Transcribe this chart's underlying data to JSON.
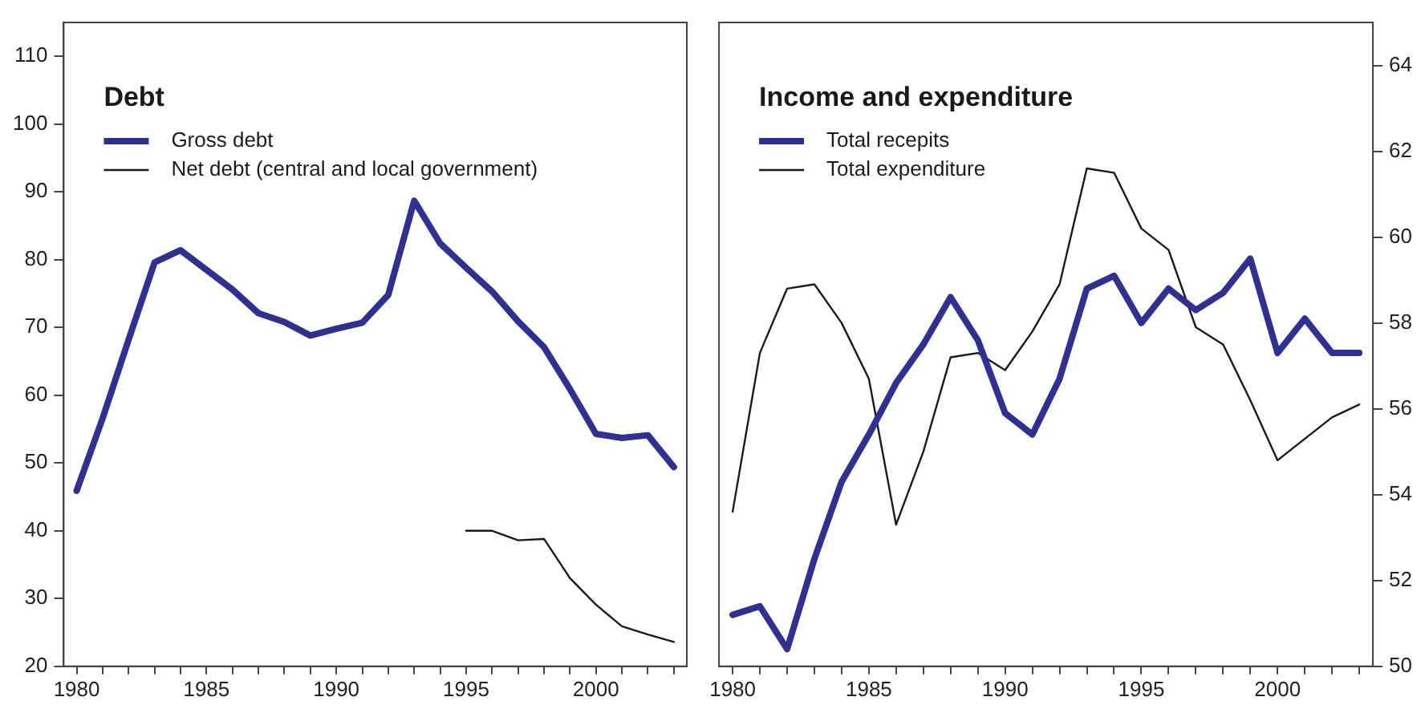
{
  "chart_data": [
    {
      "type": "line",
      "title": "Debt",
      "legend": "top left",
      "x": [
        1980,
        1981,
        1982,
        1983,
        1984,
        1985,
        1986,
        1987,
        1988,
        1989,
        1990,
        1991,
        1992,
        1993,
        1994,
        1995,
        1996,
        1997,
        1998,
        1999,
        2000,
        2001,
        2002,
        2003
      ],
      "xlim": [
        1979.5,
        2003.5
      ],
      "xticks": [
        1980,
        {
          "value": 1981,
          "label": null
        },
        {
          "value": 1982,
          "label": null
        },
        {
          "value": 1983,
          "label": null
        },
        {
          "value": 1984,
          "label": null
        },
        1985,
        {
          "value": 1986,
          "label": null
        },
        {
          "value": 1987,
          "label": null
        },
        {
          "value": 1988,
          "label": null
        },
        {
          "value": 1989,
          "label": null
        },
        1990,
        {
          "value": 1991,
          "label": null
        },
        {
          "value": 1992,
          "label": null
        },
        {
          "value": 1993,
          "label": null
        },
        {
          "value": 1994,
          "label": null
        },
        1995,
        {
          "value": 1996,
          "label": null
        },
        {
          "value": 1997,
          "label": null
        },
        {
          "value": 1998,
          "label": null
        },
        {
          "value": 1999,
          "label": null
        },
        2000,
        {
          "value": 2001,
          "label": null
        },
        {
          "value": 2002,
          "label": null
        },
        {
          "value": 2003,
          "label": null
        }
      ],
      "ylim": [
        20,
        115
      ],
      "yticks": [
        20,
        30,
        40,
        50,
        60,
        70,
        80,
        90,
        100,
        110
      ],
      "series": [
        {
          "name": "Gross debt",
          "color": "#2e3192",
          "values": [
            45.9,
            56.6,
            68.2,
            79.6,
            81.4,
            78.5,
            75.6,
            72.1,
            70.8,
            68.8,
            69.8,
            70.7,
            74.8,
            88.7,
            82.4,
            78.8,
            75.3,
            70.9,
            67.1,
            60.9,
            54.3,
            53.7,
            54.1,
            49.4
          ]
        },
        {
          "name": "Net debt (central and local government)",
          "color": "#1a1a1a",
          "values": [
            null,
            null,
            null,
            null,
            null,
            null,
            null,
            null,
            null,
            null,
            null,
            null,
            null,
            null,
            null,
            40.0,
            40.0,
            38.6,
            38.8,
            33.0,
            29.1,
            25.9,
            24.7,
            23.6
          ]
        }
      ]
    },
    {
      "type": "line",
      "title": "Income and expenditure",
      "legend": "top left",
      "x": [
        1980,
        1981,
        1982,
        1983,
        1984,
        1985,
        1986,
        1987,
        1988,
        1989,
        1990,
        1991,
        1992,
        1993,
        1994,
        1995,
        1996,
        1997,
        1998,
        1999,
        2000,
        2001,
        2002,
        2003
      ],
      "xlim": [
        1979.5,
        2003.5
      ],
      "xticks": [
        1980,
        {
          "value": 1981,
          "label": null
        },
        {
          "value": 1982,
          "label": null
        },
        {
          "value": 1983,
          "label": null
        },
        {
          "value": 1984,
          "label": null
        },
        1985,
        {
          "value": 1986,
          "label": null
        },
        {
          "value": 1987,
          "label": null
        },
        {
          "value": 1988,
          "label": null
        },
        {
          "value": 1989,
          "label": null
        },
        1990,
        {
          "value": 1991,
          "label": null
        },
        {
          "value": 1992,
          "label": null
        },
        {
          "value": 1993,
          "label": null
        },
        {
          "value": 1994,
          "label": null
        },
        1995,
        {
          "value": 1996,
          "label": null
        },
        {
          "value": 1997,
          "label": null
        },
        {
          "value": 1998,
          "label": null
        },
        {
          "value": 1999,
          "label": null
        },
        2000,
        {
          "value": 2001,
          "label": null
        },
        {
          "value": 2002,
          "label": null
        },
        {
          "value": 2003,
          "label": null
        }
      ],
      "y2lim": [
        50,
        65
      ],
      "y2ticks": [
        50,
        52,
        54,
        56,
        58,
        60,
        62,
        64
      ],
      "series": [
        {
          "name": "Total recepits",
          "color": "#2e3192",
          "axis": "y2",
          "values": [
            51.2,
            51.4,
            50.4,
            52.5,
            54.3,
            55.4,
            56.6,
            57.5,
            58.6,
            57.6,
            55.9,
            55.4,
            56.7,
            58.8,
            59.1,
            58.0,
            58.8,
            58.3,
            58.7,
            59.5,
            57.3,
            58.1,
            57.3,
            57.3
          ]
        },
        {
          "name": "Total expenditure",
          "color": "#1a1a1a",
          "axis": "y2",
          "values": [
            53.6,
            57.3,
            58.8,
            58.9,
            58.0,
            56.7,
            53.3,
            55.0,
            57.2,
            57.3,
            56.9,
            57.8,
            58.9,
            61.6,
            61.5,
            60.2,
            59.7,
            57.9,
            57.5,
            56.2,
            54.8,
            55.3,
            55.8,
            56.1
          ]
        }
      ]
    }
  ]
}
